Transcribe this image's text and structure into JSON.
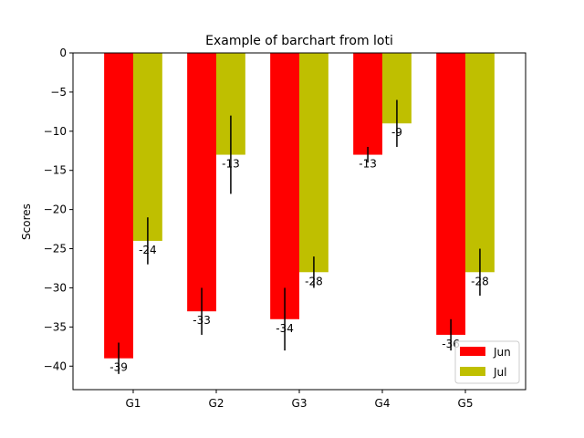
{
  "chart_data": {
    "type": "bar",
    "title": "Example of barchart from loti",
    "xlabel": "",
    "ylabel": "Scores",
    "categories": [
      "G1",
      "G2",
      "G3",
      "G4",
      "G5"
    ],
    "ylim": [
      -43,
      0
    ],
    "yticks": [
      0,
      -5,
      -10,
      -15,
      -20,
      -25,
      -30,
      -35,
      -40
    ],
    "grid": false,
    "legend": "lower-right",
    "series": [
      {
        "name": "Jun",
        "color": "#ff0000",
        "values": [
          -39,
          -33,
          -34,
          -13,
          -36
        ],
        "error_low": [
          -41,
          -36,
          -38,
          -14,
          -38
        ],
        "error_high": [
          -37,
          -30,
          -30,
          -12,
          -34
        ]
      },
      {
        "name": "Jul",
        "color": "#bfbf00",
        "values": [
          -24,
          -13,
          -28,
          -9,
          -28
        ],
        "error_low": [
          -27,
          -18,
          -30,
          -12,
          -31
        ],
        "error_high": [
          -21,
          -8,
          -26,
          -6,
          -25
        ]
      }
    ]
  }
}
